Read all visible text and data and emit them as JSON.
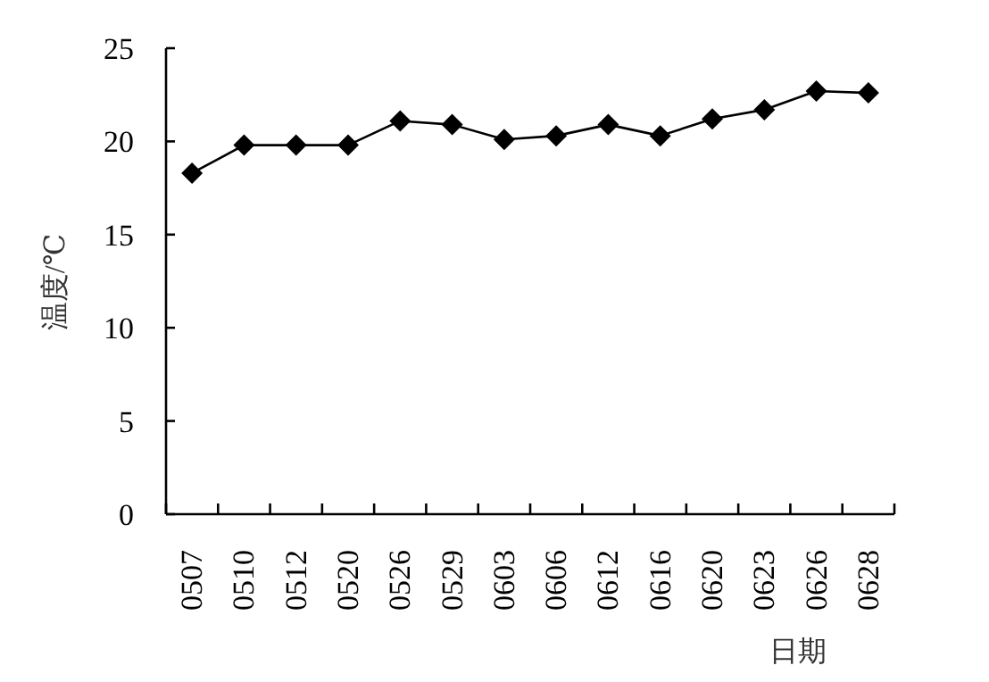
{
  "chart_data": {
    "type": "line",
    "xlabel": "日期",
    "ylabel": "温度/℃",
    "categories": [
      "0507",
      "0510",
      "0512",
      "0520",
      "0526",
      "0529",
      "0603",
      "0606",
      "0612",
      "0616",
      "0620",
      "0623",
      "0626",
      "0628"
    ],
    "series": [
      {
        "color": "#000000",
        "values": [
          18.3,
          19.8,
          19.8,
          19.8,
          21.1,
          20.9,
          20.1,
          20.3,
          20.9,
          20.3,
          21.2,
          21.7,
          22.7,
          22.6
        ]
      }
    ],
    "ylim": [
      0,
      25
    ],
    "yticks": [
      0,
      5,
      10,
      15,
      20,
      25
    ],
    "marker": "diamond",
    "line_style": "solid"
  }
}
